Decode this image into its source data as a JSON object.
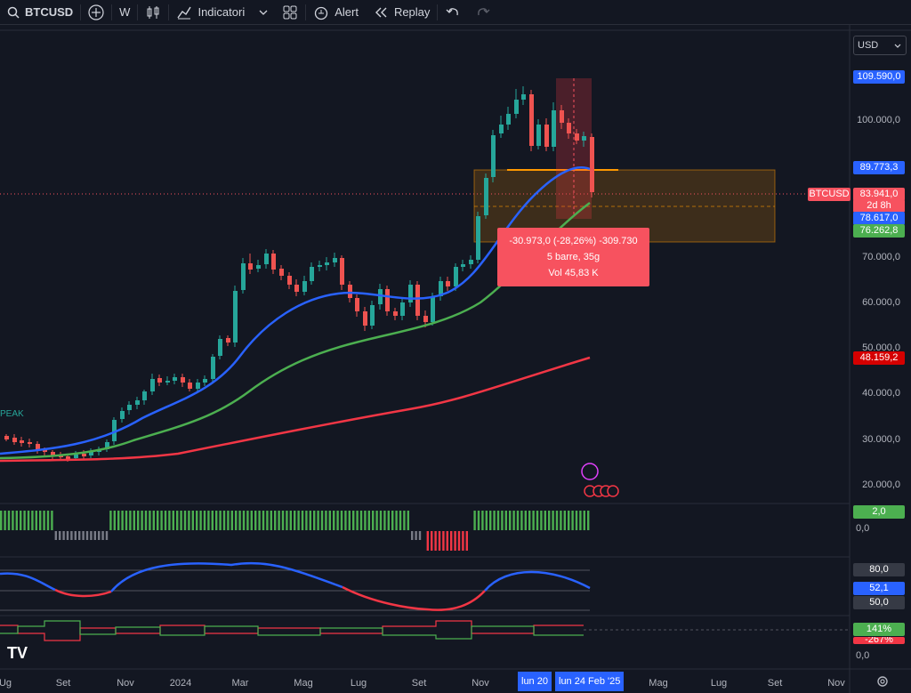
{
  "toolbar": {
    "symbol": "BTCUSD",
    "interval": "W",
    "indicators_label": "Indicatori",
    "alert_label": "Alert",
    "replay_label": "Replay"
  },
  "currency": "USD",
  "price_axis": [
    {
      "label": "100.000,0",
      "y": 136
    },
    {
      "label": "70.000,0",
      "y": 290
    },
    {
      "label": "60.000,0",
      "y": 341
    },
    {
      "label": "50.000,0",
      "y": 392
    },
    {
      "label": "40.000,0",
      "y": 443
    },
    {
      "label": "30.000,0",
      "y": 495
    },
    {
      "label": "20.000,0",
      "y": 546
    }
  ],
  "badges": {
    "high": "109.590,0",
    "level": "89.773,3",
    "symbol": "BTCUSD",
    "price": "83.941,0",
    "countdown": "2d 8h",
    "ma_blue": "78.617,0",
    "ma_green": "76.262,8",
    "ma_red": "48.159,2",
    "ind1_val": "2,0",
    "ind1_zero": "0,0",
    "rsi_80": "80,0",
    "rsi_val": "52,1",
    "rsi_50": "50,0",
    "ind3_pct": "141%",
    "ind3_neg": "-267%",
    "ind3_zero": "0,0"
  },
  "tooltip": {
    "line1": "-30.973,0 (-28,26%) -309.730",
    "line2": "5 barre, 35g",
    "line3": "Vol 45,83 K"
  },
  "peak_label": "PEAK",
  "x_axis": [
    "Ug",
    "Set",
    "Nov",
    "2024",
    "Mar",
    "Mag",
    "Lug",
    "Set",
    "Nov",
    "Mag",
    "Lug",
    "Set",
    "Nov"
  ],
  "x_selected": [
    "lun 20",
    "lun 24 Feb '25"
  ],
  "logo": "TV",
  "colors": {
    "bg": "#131722",
    "up": "#26a69a",
    "down": "#ef5350",
    "ma_blue": "#2962ff",
    "ma_green": "#4caf50",
    "ma_red": "#f23645"
  }
}
